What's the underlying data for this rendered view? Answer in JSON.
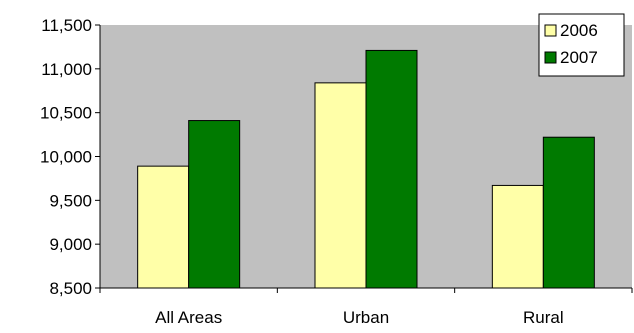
{
  "chart_data": {
    "type": "bar",
    "categories": [
      "All Areas",
      "Urban",
      "Rural"
    ],
    "series": [
      {
        "name": "2006",
        "values": [
          9890,
          10840,
          9670
        ],
        "color": "#ffffa8"
      },
      {
        "name": "2007",
        "values": [
          10410,
          11210,
          10220
        ],
        "color": "#007a00"
      }
    ],
    "ylim": [
      8500,
      11500
    ],
    "yticks": [
      "8,500",
      "9,000",
      "9,500",
      "10,000",
      "10,500",
      "11,000",
      "11,500"
    ],
    "ytick_values": [
      8500,
      9000,
      9500,
      10000,
      10500,
      11000,
      11500
    ],
    "plot_background": "#c0c0c0",
    "grid": false,
    "legend_position": "top-right"
  }
}
